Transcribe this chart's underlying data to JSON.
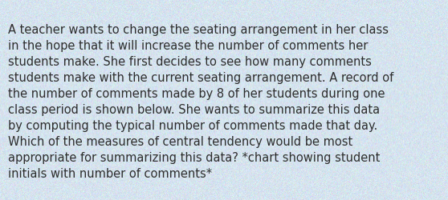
{
  "text": "A teacher wants to change the seating arrangement in her class\nin the hope that it will increase the number of comments her\nstudents make. She first decides to see how many comments\nstudents make with the current seating arrangement. A record of\nthe number of comments made by 8 of her students during one\nclass period is shown below. She wants to summarize this data\nby computing the typical number of comments made that day.\nWhich of the measures of central tendency would be most\nappropriate for summarizing this data? *chart showing student\ninitials with number of comments*",
  "background_color": "#d6e4ef",
  "text_color": "#2d2d2d",
  "font_size": 10.5,
  "fig_width": 5.58,
  "fig_height": 2.51,
  "dpi": 100
}
